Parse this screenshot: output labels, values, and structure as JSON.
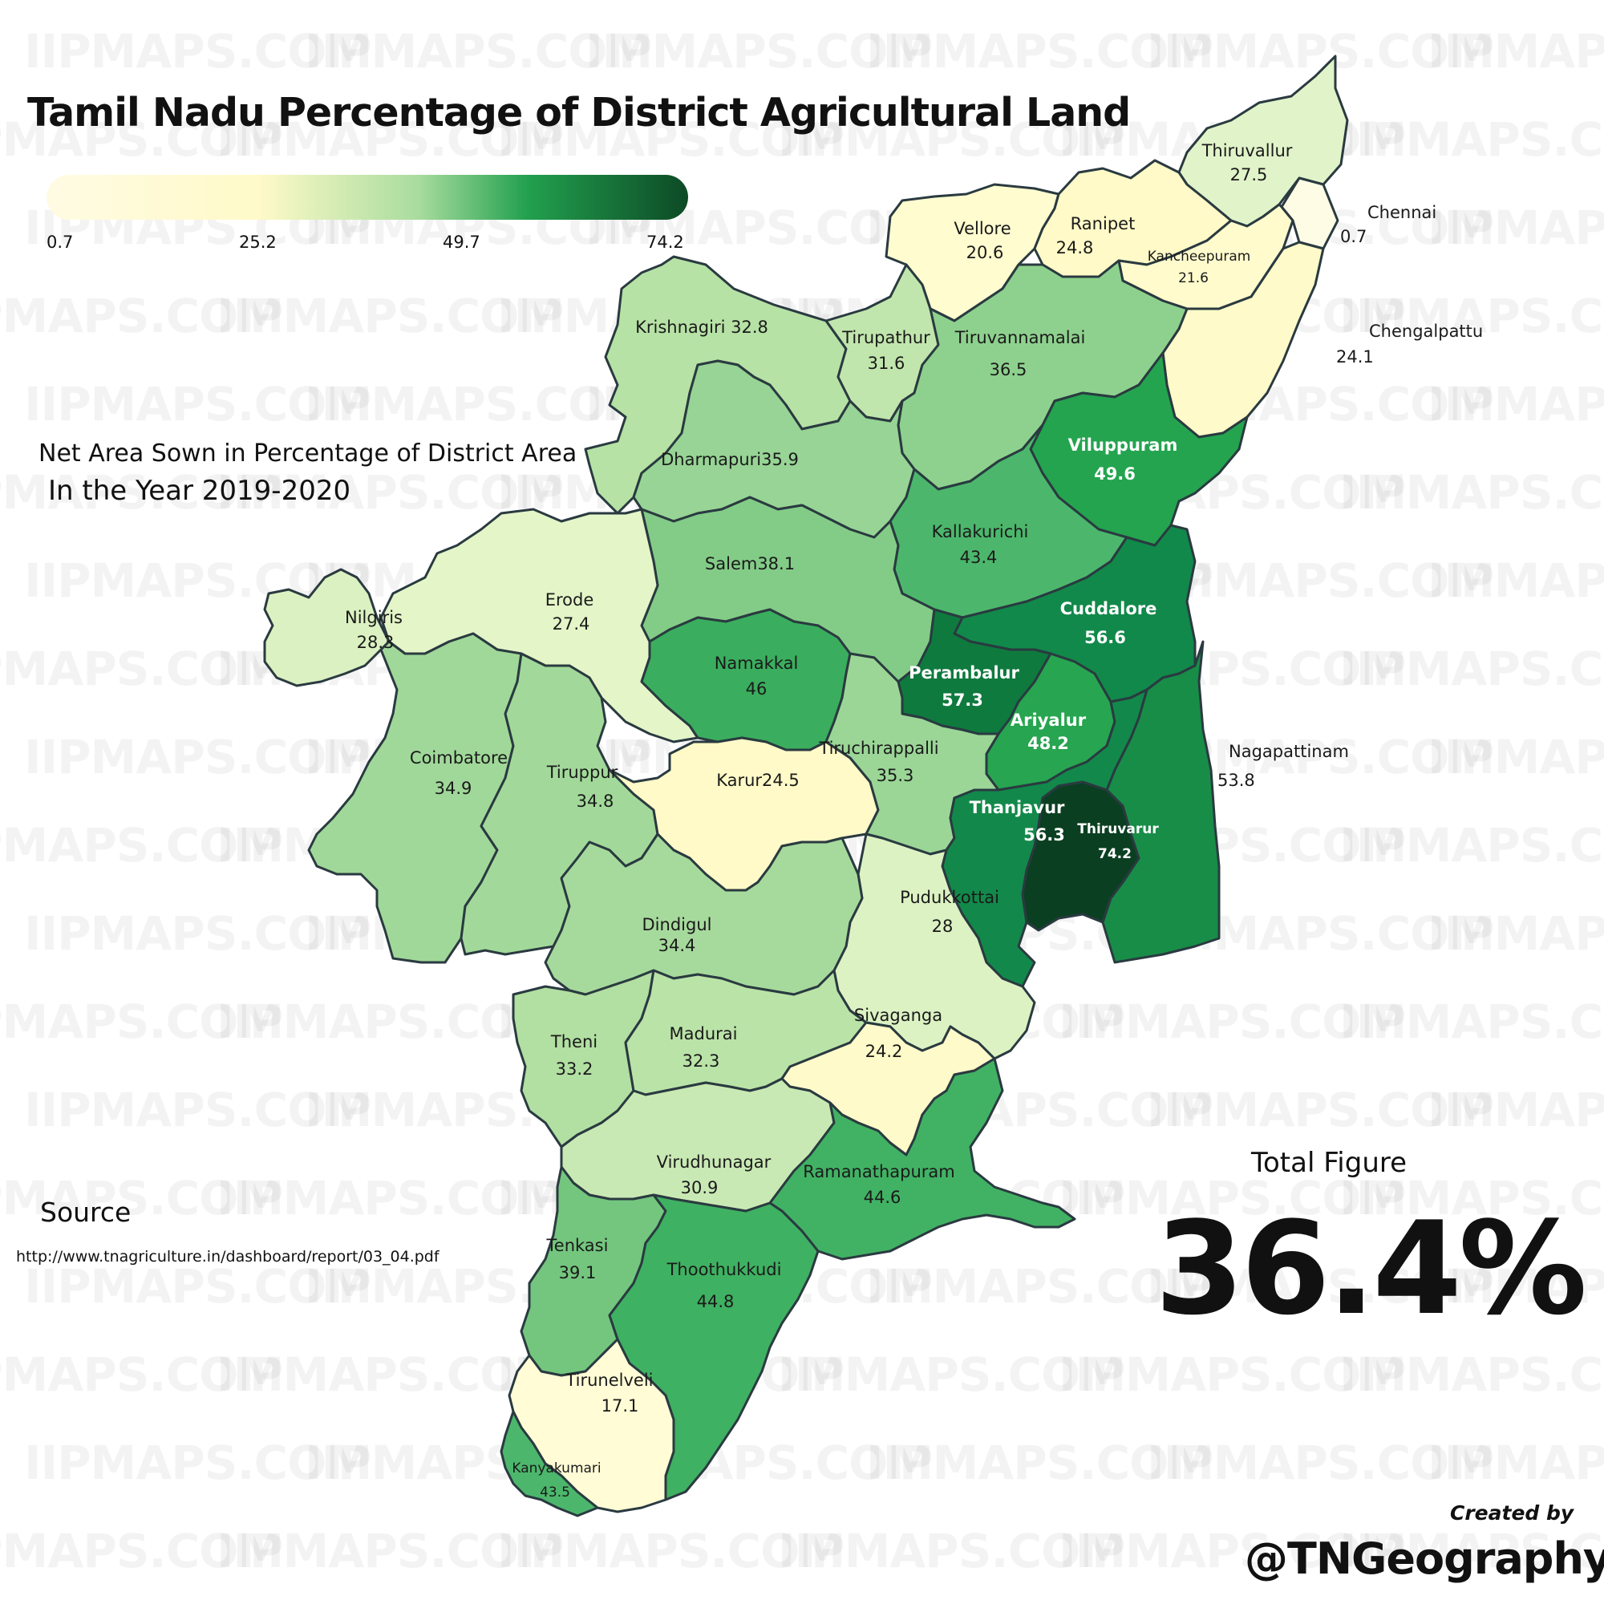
{
  "title": "Tamil Nadu Percentage of District Agricultural Land",
  "subtitle_line1": "Net Area Sown in Percentage of District Area",
  "subtitle_line2": "In the Year 2019-2020",
  "legend": {
    "ticks": [
      "0.7",
      "25.2",
      "49.7",
      "74.2"
    ],
    "colors": [
      "#fffbe3",
      "#fffac8",
      "#a8dc9e",
      "#22a04e",
      "#0d4a26"
    ]
  },
  "watermark": "IIPMAPS.COM",
  "source_label": "Source",
  "source_url": "http://www.tnagriculture.in/dashboard/report/03_04.pdf",
  "total_label": "Total Figure",
  "total_value": "36.4%",
  "created_by": "Created by",
  "handle": "@TNGeography",
  "districts": [
    {
      "name": "Thiruvallur",
      "value": "27.5",
      "color": "#e1f3c9"
    },
    {
      "name": "Chennai",
      "value": "0.7",
      "color": "#fffce6"
    },
    {
      "name": "Vellore",
      "value": "20.6",
      "color": "#fffccf"
    },
    {
      "name": "Ranipet",
      "value": "24.8",
      "color": "#fffac8"
    },
    {
      "name": "Kancheepuram",
      "value": "21.6",
      "color": "#fffbcd"
    },
    {
      "name": "Chengalpattu",
      "value": "24.1",
      "color": "#fffac9"
    },
    {
      "name": "Krishnagiri",
      "value": "32.8",
      "color": "#b6e2a5"
    },
    {
      "name": "Tirupathur",
      "value": "31.6",
      "color": "#c1e6ad"
    },
    {
      "name": "Tiruvannamalai",
      "value": "36.5",
      "color": "#8ed18e"
    },
    {
      "name": "Dharmapuri",
      "value": "35.9",
      "color": "#97d495"
    },
    {
      "name": "Viluppuram",
      "value": "49.6",
      "color": "#24a44f"
    },
    {
      "name": "Kallakurichi",
      "value": "43.4",
      "color": "#4cb76c"
    },
    {
      "name": "Salem",
      "value": "38.1",
      "color": "#83cc87"
    },
    {
      "name": "Erode",
      "value": "27.4",
      "color": "#e4f5c8"
    },
    {
      "name": "Nilgiris",
      "value": "28.3",
      "color": "#dbf1c1"
    },
    {
      "name": "Namakkal",
      "value": "46",
      "color": "#3aae5e"
    },
    {
      "name": "Cuddalore",
      "value": "56.6",
      "color": "#11894a"
    },
    {
      "name": "Perambalur",
      "value": "57.3",
      "color": "#0f7a3e"
    },
    {
      "name": "Ariyalur",
      "value": "48.2",
      "color": "#27a550"
    },
    {
      "name": "Coimbatore",
      "value": "34.9",
      "color": "#a0d899"
    },
    {
      "name": "Tiruppur",
      "value": "34.8",
      "color": "#a2d99a"
    },
    {
      "name": "Karur",
      "value": "24.5",
      "color": "#fffac8"
    },
    {
      "name": "Tiruchirappalli",
      "value": "35.3",
      "color": "#9bd697"
    },
    {
      "name": "Nagapattinam",
      "value": "53.8",
      "color": "#188d48"
    },
    {
      "name": "Thanjavur",
      "value": "56.3",
      "color": "#12894a"
    },
    {
      "name": "Thiruvarur",
      "value": "74.2",
      "color": "#0b3f22"
    },
    {
      "name": "Pudukkottai",
      "value": "28",
      "color": "#dcf2c3"
    },
    {
      "name": "Dindigul",
      "value": "34.4",
      "color": "#a6da9c"
    },
    {
      "name": "Theni",
      "value": "33.2",
      "color": "#b2dfa2"
    },
    {
      "name": "Madurai",
      "value": "32.3",
      "color": "#baE3a8"
    },
    {
      "name": "Sivaganga",
      "value": "24.2",
      "color": "#fffac9"
    },
    {
      "name": "Virudhunagar",
      "value": "30.9",
      "color": "#c9e9b4"
    },
    {
      "name": "Ramanathapuram",
      "value": "44.6",
      "color": "#41b264"
    },
    {
      "name": "Tenkasi",
      "value": "39.1",
      "color": "#74c67f"
    },
    {
      "name": "Thoothukkudi",
      "value": "44.8",
      "color": "#3fb162"
    },
    {
      "name": "Tirunelveli",
      "value": "17.1",
      "color": "#fffcd6"
    },
    {
      "name": "Kanyakumari",
      "value": "43.5",
      "color": "#4cb76c"
    }
  ]
}
